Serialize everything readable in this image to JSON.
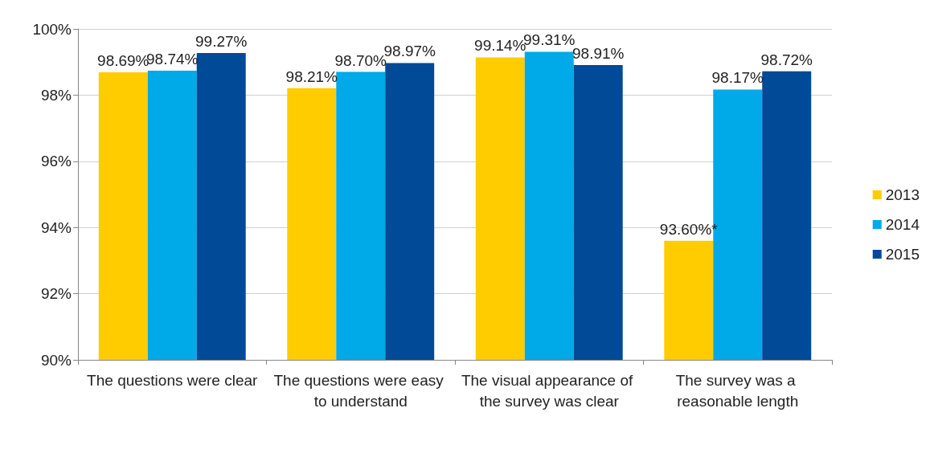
{
  "chart_data": {
    "type": "bar",
    "categories": [
      "The questions were clear",
      "The questions were easy to understand",
      "The visual appearance of the survey was clear",
      "The survey was a reasonable length"
    ],
    "series": [
      {
        "name": "2013",
        "color": "#ffcc00",
        "values": [
          98.69,
          98.21,
          99.14,
          93.6
        ],
        "value_labels": [
          "98.69%",
          "98.21%",
          "99.14%",
          "93.60%*"
        ]
      },
      {
        "name": "2014",
        "color": "#00a9e8",
        "values": [
          98.74,
          98.7,
          99.31,
          98.17
        ],
        "value_labels": [
          "98.74%",
          "98.70%",
          "99.31%",
          "98.17%"
        ]
      },
      {
        "name": "2015",
        "color": "#004a98",
        "values": [
          99.27,
          98.97,
          98.91,
          98.72
        ],
        "value_labels": [
          "99.27%",
          "98.97%",
          "98.91%",
          "98.72%"
        ]
      }
    ],
    "ylim": [
      90,
      100
    ],
    "yticks": [
      {
        "value": 90,
        "label": "90%"
      },
      {
        "value": 92,
        "label": "92%"
      },
      {
        "value": 94,
        "label": "94%"
      },
      {
        "value": 96,
        "label": "96%"
      },
      {
        "value": 98,
        "label": "98%"
      },
      {
        "value": 100,
        "label": "100%"
      }
    ],
    "grid": "y",
    "legend": "right"
  }
}
